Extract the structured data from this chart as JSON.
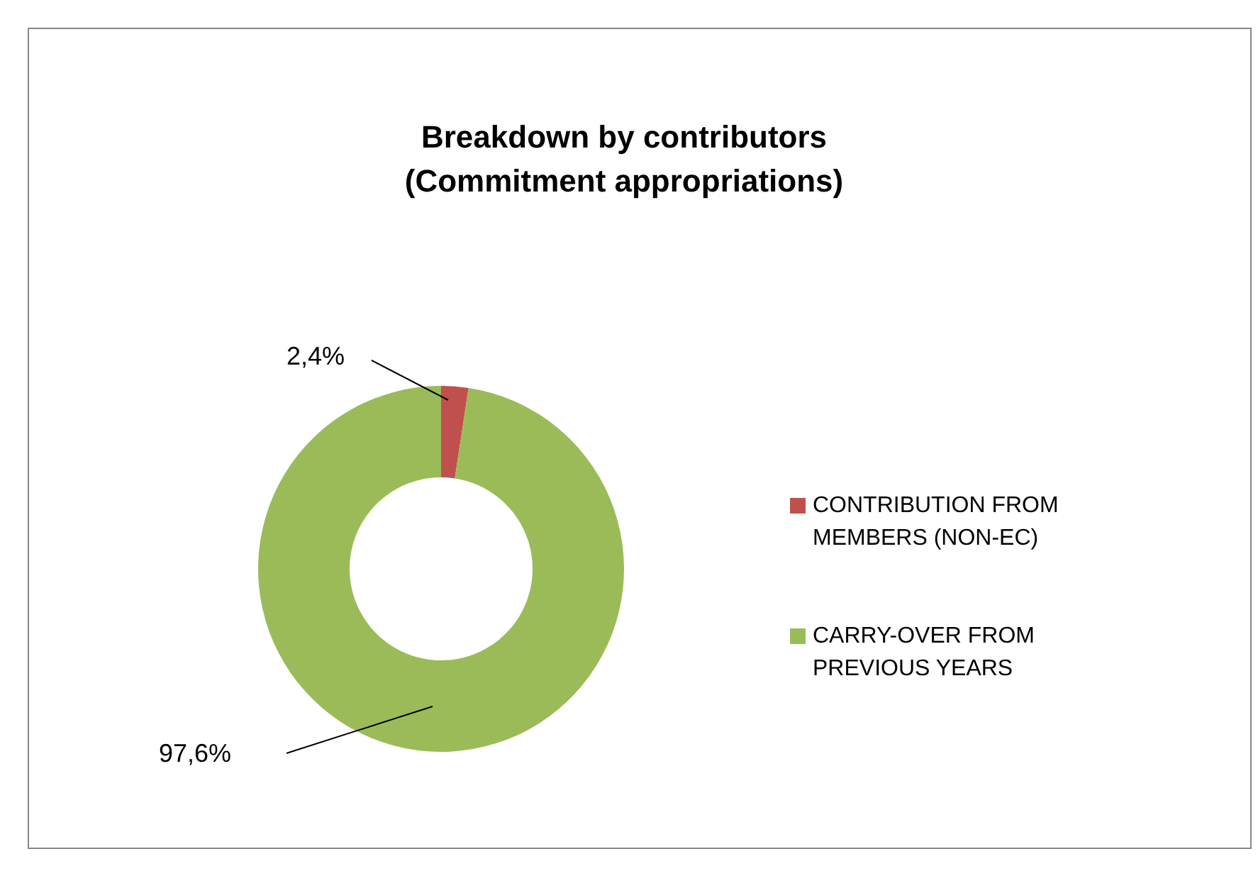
{
  "chart_data": {
    "type": "donut",
    "title": "Breakdown by contributors\n(Commitment appropriations)",
    "categories": [
      "CONTRIBUTION FROM MEMBERS (NON-EC)",
      "CARRY-OVER FROM PREVIOUS YEARS"
    ],
    "values": [
      2.4,
      97.6
    ],
    "colors": [
      "#c0504d",
      "#9bbb59"
    ],
    "value_labels": [
      "2,4%",
      "97,6%"
    ],
    "legend": "right"
  }
}
